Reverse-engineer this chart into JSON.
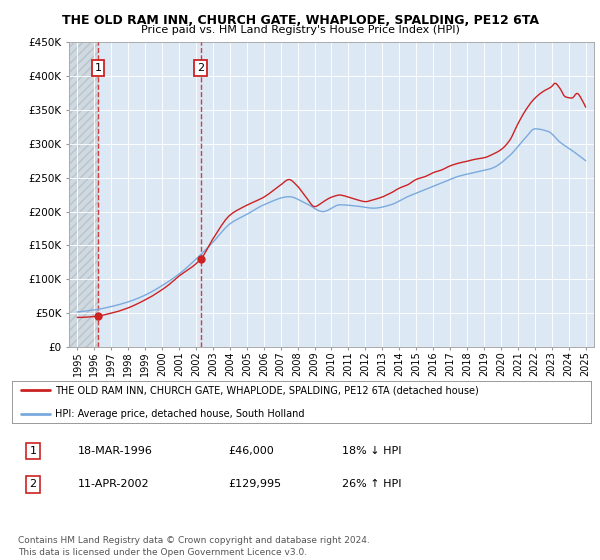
{
  "title": "THE OLD RAM INN, CHURCH GATE, WHAPLODE, SPALDING, PE12 6TA",
  "subtitle": "Price paid vs. HM Land Registry's House Price Index (HPI)",
  "property_color": "#cc2222",
  "hpi_color": "#7aaadd",
  "annotation_color": "#cc2222",
  "sale1_date": 1996.21,
  "sale1_price": 46000,
  "sale1_label": "1",
  "sale2_date": 2002.28,
  "sale2_price": 129995,
  "sale2_label": "2",
  "legend_line1": "THE OLD RAM INN, CHURCH GATE, WHAPLODE, SPALDING, PE12 6TA (detached house)",
  "legend_line2": "HPI: Average price, detached house, South Holland",
  "footnote": "Contains HM Land Registry data © Crown copyright and database right 2024.\nThis data is licensed under the Open Government Licence v3.0.",
  "ylim_max": 450000,
  "xmin": 1994.5,
  "xmax": 2025.5,
  "background_plot": "#dde8f5",
  "hatch_facecolor": "#d0d8e0",
  "hatch_edgecolor": "#b8c4cc"
}
